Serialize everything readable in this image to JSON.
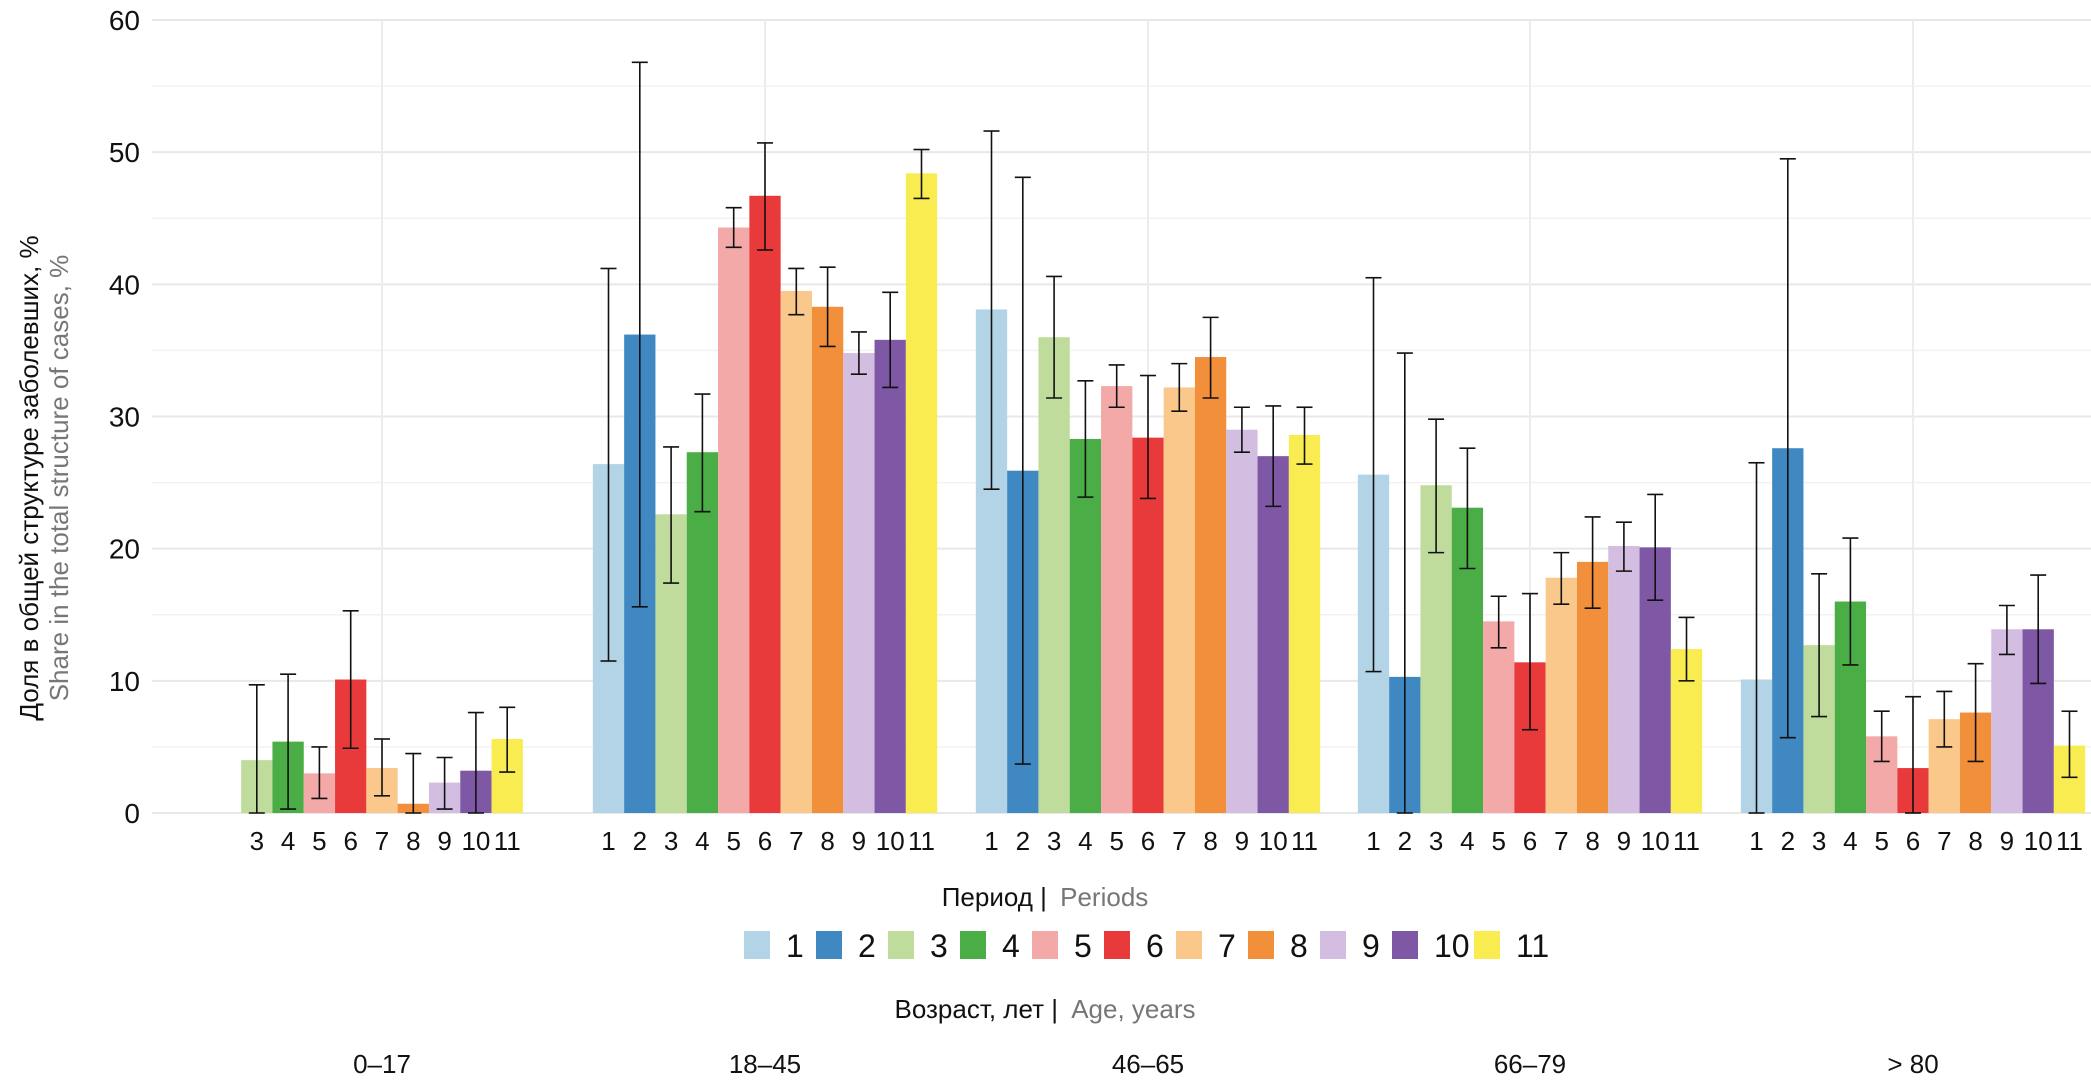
{
  "chart_data": {
    "type": "bar",
    "subtype": "grouped bar with error bars",
    "ylabel_ru": "Доля в общей структуре заболевших, %",
    "ylabel_en": "Share in the total structure of cases, %",
    "ylim": [
      0,
      60
    ],
    "yticks": [
      0,
      10,
      20,
      30,
      40,
      50,
      60
    ],
    "grid": true,
    "legend_title_ru": "Период |",
    "legend_title_en": "Periods",
    "legend_position": "bottom",
    "xlabel_ru": "Возраст, лет |",
    "xlabel_en": "Age, years",
    "periods": [
      "1",
      "2",
      "3",
      "4",
      "5",
      "6",
      "7",
      "8",
      "9",
      "10",
      "11"
    ],
    "colors": [
      "#b3d4e6",
      "#3f88c1",
      "#bfdc9d",
      "#4aad46",
      "#f2a9a8",
      "#e83a3b",
      "#f9c88a",
      "#f28f3b",
      "#d3bde0",
      "#7e57a5",
      "#f8ec50"
    ],
    "groups": [
      {
        "label": "0–17",
        "bars": [
          {
            "period": 3,
            "value": 4.0,
            "lo": 0.0,
            "hi": 9.7
          },
          {
            "period": 4,
            "value": 5.4,
            "lo": 0.3,
            "hi": 10.5
          },
          {
            "period": 5,
            "value": 3.0,
            "lo": 1.1,
            "hi": 5.0
          },
          {
            "period": 6,
            "value": 10.1,
            "lo": 4.9,
            "hi": 15.3
          },
          {
            "period": 7,
            "value": 3.4,
            "lo": 1.3,
            "hi": 5.6
          },
          {
            "period": 8,
            "value": 0.7,
            "lo": 0.0,
            "hi": 4.5
          },
          {
            "period": 9,
            "value": 2.3,
            "lo": 0.3,
            "hi": 4.2
          },
          {
            "period": 10,
            "value": 3.2,
            "lo": 0.0,
            "hi": 7.6
          },
          {
            "period": 11,
            "value": 5.6,
            "lo": 3.1,
            "hi": 8.0
          }
        ]
      },
      {
        "label": "18–45",
        "bars": [
          {
            "period": 1,
            "value": 26.4,
            "lo": 11.5,
            "hi": 41.2
          },
          {
            "period": 2,
            "value": 36.2,
            "lo": 15.6,
            "hi": 56.8
          },
          {
            "period": 3,
            "value": 22.6,
            "lo": 17.4,
            "hi": 27.7
          },
          {
            "period": 4,
            "value": 27.3,
            "lo": 22.8,
            "hi": 31.7
          },
          {
            "period": 5,
            "value": 44.3,
            "lo": 42.8,
            "hi": 45.8
          },
          {
            "period": 6,
            "value": 46.7,
            "lo": 42.6,
            "hi": 50.7
          },
          {
            "period": 7,
            "value": 39.5,
            "lo": 37.7,
            "hi": 41.2
          },
          {
            "period": 8,
            "value": 38.3,
            "lo": 35.3,
            "hi": 41.3
          },
          {
            "period": 9,
            "value": 34.8,
            "lo": 33.2,
            "hi": 36.4
          },
          {
            "period": 10,
            "value": 35.8,
            "lo": 32.2,
            "hi": 39.4
          },
          {
            "period": 11,
            "value": 48.4,
            "lo": 46.5,
            "hi": 50.2
          }
        ]
      },
      {
        "label": "46–65",
        "bars": [
          {
            "period": 1,
            "value": 38.1,
            "lo": 24.5,
            "hi": 51.6
          },
          {
            "period": 2,
            "value": 25.9,
            "lo": 3.7,
            "hi": 48.1
          },
          {
            "period": 3,
            "value": 36.0,
            "lo": 31.4,
            "hi": 40.6
          },
          {
            "period": 4,
            "value": 28.3,
            "lo": 23.9,
            "hi": 32.7
          },
          {
            "period": 5,
            "value": 32.3,
            "lo": 30.7,
            "hi": 33.9
          },
          {
            "period": 6,
            "value": 28.4,
            "lo": 23.8,
            "hi": 33.1
          },
          {
            "period": 7,
            "value": 32.2,
            "lo": 30.4,
            "hi": 34.0
          },
          {
            "period": 8,
            "value": 34.5,
            "lo": 31.4,
            "hi": 37.5
          },
          {
            "period": 9,
            "value": 29.0,
            "lo": 27.3,
            "hi": 30.7
          },
          {
            "period": 10,
            "value": 27.0,
            "lo": 23.2,
            "hi": 30.8
          },
          {
            "period": 11,
            "value": 28.6,
            "lo": 26.4,
            "hi": 30.7
          }
        ]
      },
      {
        "label": "66–79",
        "bars": [
          {
            "period": 1,
            "value": 25.6,
            "lo": 10.7,
            "hi": 40.5
          },
          {
            "period": 2,
            "value": 10.3,
            "lo": 0.0,
            "hi": 34.8
          },
          {
            "period": 3,
            "value": 24.8,
            "lo": 19.7,
            "hi": 29.8
          },
          {
            "period": 4,
            "value": 23.1,
            "lo": 18.5,
            "hi": 27.6
          },
          {
            "period": 5,
            "value": 14.5,
            "lo": 12.5,
            "hi": 16.4
          },
          {
            "period": 6,
            "value": 11.4,
            "lo": 6.3,
            "hi": 16.6
          },
          {
            "period": 7,
            "value": 17.8,
            "lo": 15.8,
            "hi": 19.7
          },
          {
            "period": 8,
            "value": 19.0,
            "lo": 15.5,
            "hi": 22.4
          },
          {
            "period": 9,
            "value": 20.2,
            "lo": 18.3,
            "hi": 22.0
          },
          {
            "period": 10,
            "value": 20.1,
            "lo": 16.1,
            "hi": 24.1
          },
          {
            "period": 11,
            "value": 12.4,
            "lo": 10.0,
            "hi": 14.8
          }
        ]
      },
      {
        "label": "> 80",
        "bars": [
          {
            "period": 1,
            "value": 10.1,
            "lo": 0.0,
            "hi": 26.5
          },
          {
            "period": 2,
            "value": 27.6,
            "lo": 5.7,
            "hi": 49.5
          },
          {
            "period": 3,
            "value": 12.7,
            "lo": 7.3,
            "hi": 18.1
          },
          {
            "period": 4,
            "value": 16.0,
            "lo": 11.2,
            "hi": 20.8
          },
          {
            "period": 5,
            "value": 5.8,
            "lo": 3.9,
            "hi": 7.7
          },
          {
            "period": 6,
            "value": 3.4,
            "lo": 0.0,
            "hi": 8.8
          },
          {
            "period": 7,
            "value": 7.1,
            "lo": 5.0,
            "hi": 9.2
          },
          {
            "period": 8,
            "value": 7.6,
            "lo": 3.9,
            "hi": 11.3
          },
          {
            "period": 9,
            "value": 13.9,
            "lo": 12.0,
            "hi": 15.7
          },
          {
            "period": 10,
            "value": 13.9,
            "lo": 9.8,
            "hi": 18.0
          },
          {
            "period": 11,
            "value": 5.1,
            "lo": 2.7,
            "hi": 7.7
          }
        ]
      }
    ]
  }
}
